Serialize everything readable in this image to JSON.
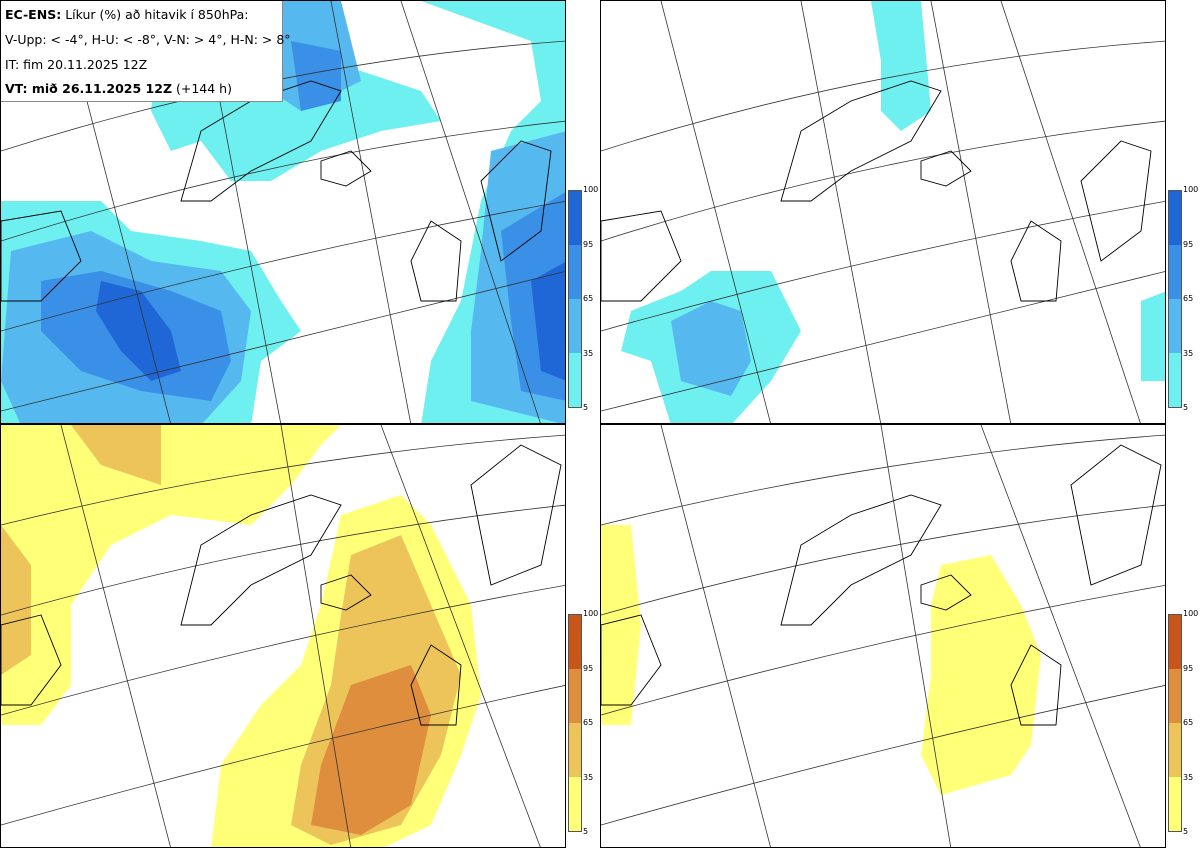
{
  "info": {
    "title_bold": "EC-ENS:",
    "title_rest": "Líkur (%) að hitavik í 850hPa:",
    "thresholds": "V-Upp: < -4°, H-U: < -8°, V-N: > 4°, H-N: > 8°",
    "initial_time": "IT: fim 20.11.2025 12Z",
    "valid_bold": "VT: mið 26.11.2025 12Z",
    "valid_rest": "(+144 h)"
  },
  "colorbars": {
    "ticks": [
      "100",
      "95",
      "65",
      "35",
      "5"
    ],
    "cold_colors": [
      "#1f66d6",
      "#3a8fe6",
      "#55b9f0",
      "#6ef0f0"
    ],
    "warm_colors": [
      "#c8551a",
      "#de8e3c",
      "#edc45a",
      "#ffff78"
    ]
  },
  "panels": [
    {
      "name": "cold-4"
    },
    {
      "name": "cold-8"
    },
    {
      "name": "warm-4"
    },
    {
      "name": "warm-8"
    }
  ]
}
